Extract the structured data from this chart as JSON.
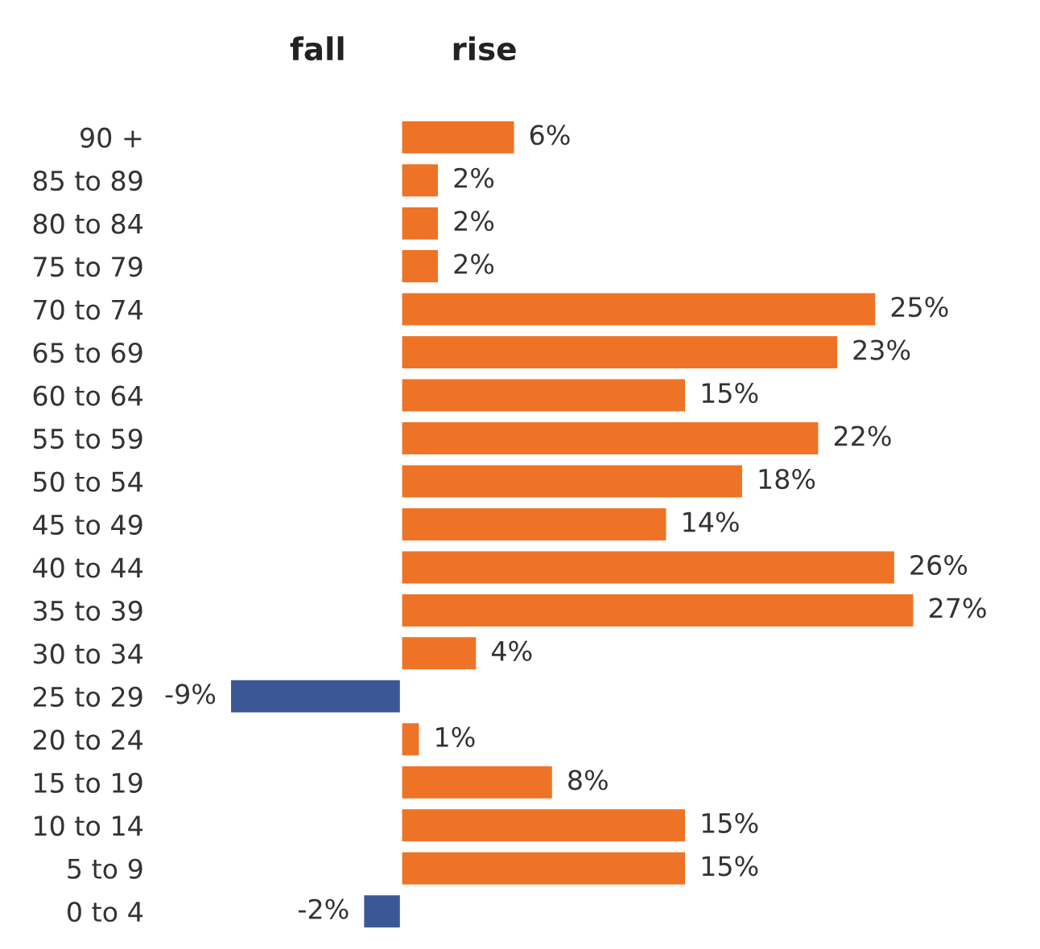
{
  "chart_data": {
    "type": "bar",
    "orientation": "horizontal",
    "tick_labels": "y",
    "annotations": [
      "fall",
      "rise"
    ],
    "categories": [
      "90 +",
      "85 to 89",
      "80 to 84",
      "75 to 79",
      "70 to 74",
      "65 to 69",
      "60 to 64",
      "55 to 59",
      "50 to 54",
      "45 to 49",
      "40 to 44",
      "35 to 39",
      "30 to 34",
      "25 to 29",
      "20 to 24",
      "15 to 19",
      "10 to 14",
      "5 to 9",
      "0 to 4"
    ],
    "values": [
      6,
      2,
      2,
      2,
      25,
      23,
      15,
      22,
      18,
      14,
      26,
      27,
      4,
      -9,
      1,
      8,
      15,
      15,
      -2
    ],
    "value_labels": [
      "6%",
      "2%",
      "2%",
      "2%",
      "25%",
      "23%",
      "15%",
      "22%",
      "18%",
      "14%",
      "26%",
      "27%",
      "4%",
      "-9%",
      "1%",
      "8%",
      "15%",
      "15%",
      "-2%"
    ],
    "colors": [
      "#ee7326",
      "#ee7326",
      "#ee7326",
      "#ee7326",
      "#ee7326",
      "#ee7326",
      "#ee7326",
      "#ee7326",
      "#ee7326",
      "#ee7326",
      "#ee7326",
      "#ee7326",
      "#ee7326",
      "#3c5796",
      "#ee7326",
      "#ee7326",
      "#ee7326",
      "#ee7326",
      "#3c5796"
    ]
  }
}
